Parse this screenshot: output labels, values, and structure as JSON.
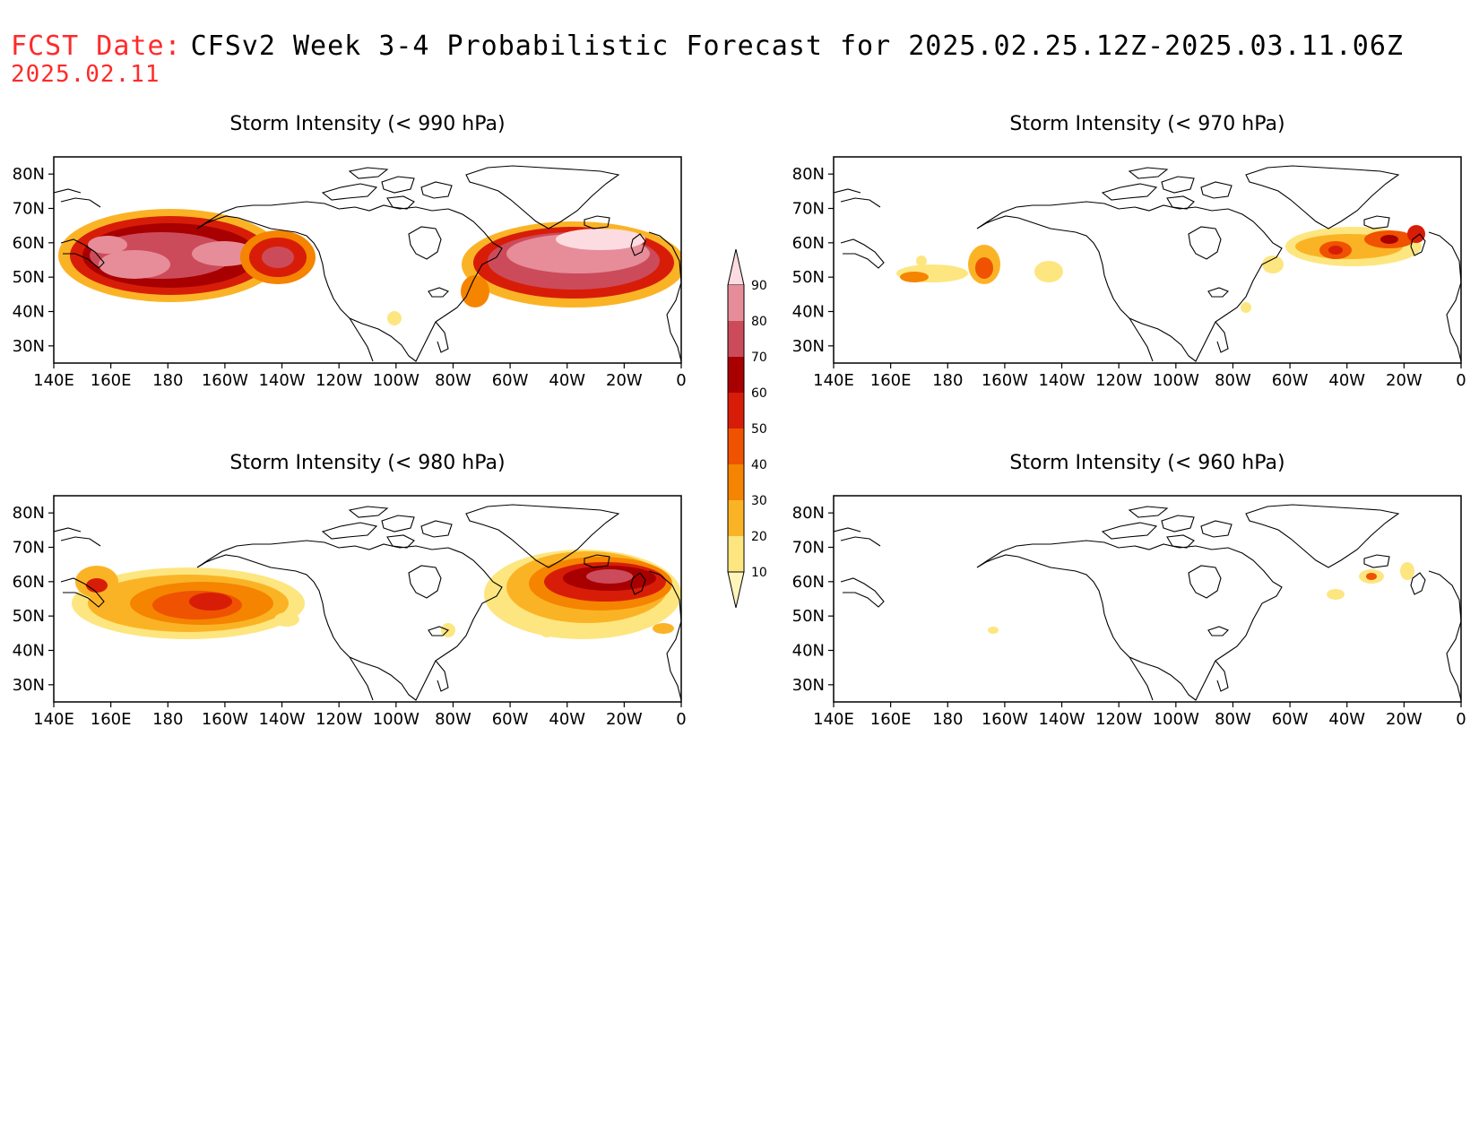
{
  "header": {
    "fcst_label": "FCST Date:",
    "fcst_date": "2025.02.11",
    "title": "CFSv2 Week 3-4 Probabilistic Forecast for 2025.02.25.12Z-2025.03.11.06Z"
  },
  "lat_ticks": [
    "80N",
    "70N",
    "60N",
    "50N",
    "40N",
    "30N"
  ],
  "lon_ticks": [
    "140E",
    "160E",
    "180",
    "160W",
    "140W",
    "120W",
    "100W",
    "80W",
    "60W",
    "40W",
    "20W",
    "0"
  ],
  "panels": [
    {
      "title": "Storm Intensity (< 990 hPa)"
    },
    {
      "title": "Storm Intensity (< 970 hPa)"
    },
    {
      "title": "Storm Intensity (< 980 hPa)"
    },
    {
      "title": "Storm Intensity (< 960 hPa)"
    }
  ],
  "colorbar": {
    "levels": [
      "10",
      "20",
      "30",
      "40",
      "50",
      "60",
      "70",
      "80",
      "90"
    ],
    "colors": [
      "#fff5bb",
      "#fde680",
      "#fbb326",
      "#f58400",
      "#ef5200",
      "#d71d08",
      "#a80000",
      "#cc4b5b",
      "#e68d99",
      "#fcdce1"
    ]
  }
}
